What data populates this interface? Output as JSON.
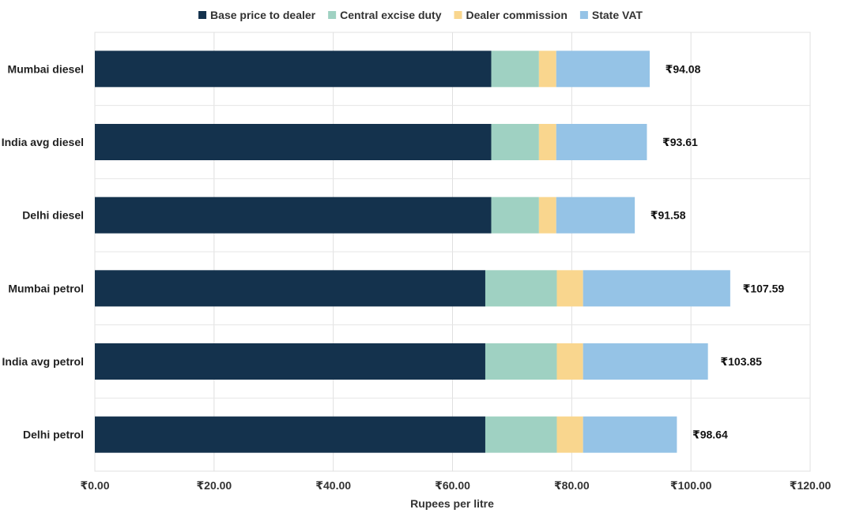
{
  "chart_data": {
    "type": "bar",
    "orientation": "horizontal",
    "stacked": true,
    "categories": [
      "Mumbai diesel",
      "India avg diesel",
      "Delhi diesel",
      "Mumbai petrol",
      "India avg petrol",
      "Delhi petrol"
    ],
    "series": [
      {
        "name": "Base price to dealer",
        "color": "#14324d",
        "values": [
          66.5,
          66.5,
          66.5,
          65.5,
          65.5,
          65.5
        ]
      },
      {
        "name": "Central excise duty",
        "color": "#9fd1c2",
        "values": [
          8.0,
          8.0,
          8.0,
          12.0,
          12.0,
          12.0
        ]
      },
      {
        "name": "Dealer commission",
        "color": "#f9d68e",
        "values": [
          2.9,
          2.9,
          2.9,
          4.4,
          4.4,
          4.4
        ]
      },
      {
        "name": "State VAT",
        "color": "#95c3e6",
        "values": [
          15.68,
          15.21,
          13.18,
          24.69,
          20.95,
          15.74
        ]
      }
    ],
    "totals": [
      "₹94.08",
      "₹93.61",
      "₹91.58",
      "₹107.59",
      "₹103.85",
      "₹98.64"
    ],
    "x_ticks": [
      "₹0.00",
      "₹20.00",
      "₹40.00",
      "₹60.00",
      "₹80.00",
      "₹100.00",
      "₹120.00"
    ],
    "xlim": [
      0,
      120
    ],
    "xlabel": "Rupees per litre",
    "ylabel": "",
    "title": "",
    "legend_position": "top",
    "grid": "vertical"
  }
}
